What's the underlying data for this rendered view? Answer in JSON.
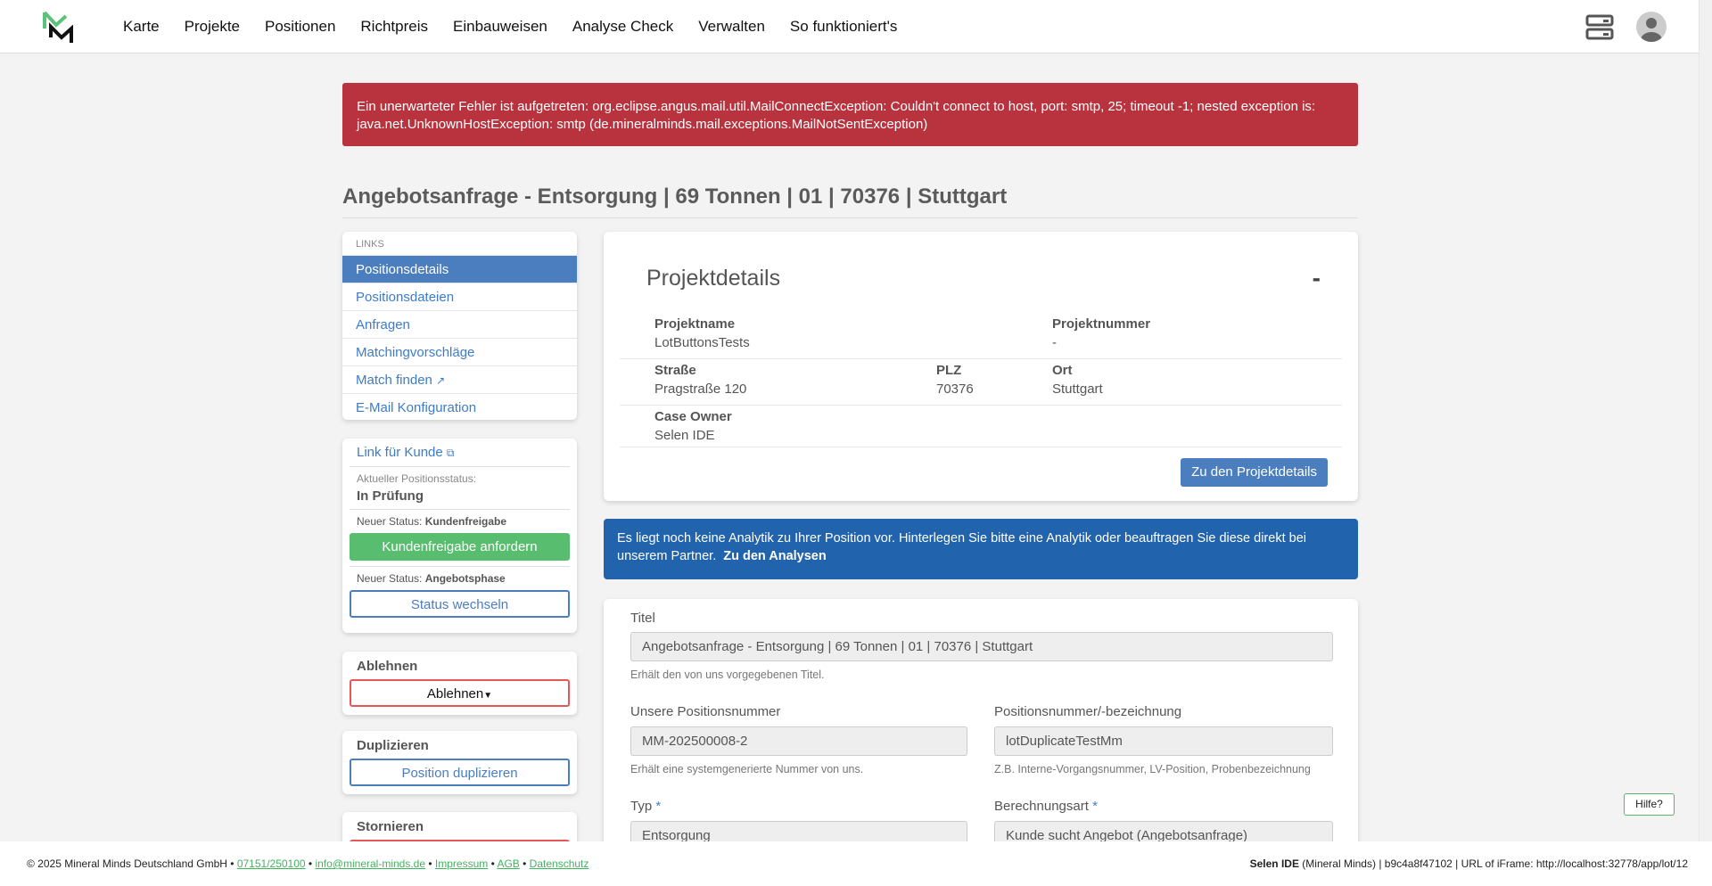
{
  "nav": {
    "items": [
      "Karte",
      "Projekte",
      "Positionen",
      "Richtpreis",
      "Einbauweisen",
      "Analyse Check",
      "Verwalten",
      "So funktioniert's"
    ]
  },
  "alert": "Ein unerwarteter Fehler ist aufgetreten: org.eclipse.angus.mail.util.MailConnectException: Couldn't connect to host, port: smtp, 25; timeout -1; nested exception is: java.net.UnknownHostException: smtp (de.mineralminds.mail.exceptions.MailNotSentException)",
  "page_title": "Angebotsanfrage - Entsorgung | 69 Tonnen | 01 | 70376 | Stuttgart",
  "sidebar": {
    "links_label": "LINKS",
    "links": [
      "Positionsdetails",
      "Positionsdateien",
      "Anfragen",
      "Matchingvorschläge",
      "Match finden",
      "E-Mail Konfiguration"
    ],
    "link_customer": "Link für Kunde",
    "status_label": "Aktueller Positionsstatus:",
    "status_value": "In Prüfung",
    "new_status_prefix": "Neuer Status:",
    "new_status_1": "Kundenfreigabe",
    "btn_release": "Kundenfreigabe anfordern",
    "new_status_2": "Angebotsphase",
    "btn_switch": "Status wechseln",
    "reject_title": "Ablehnen",
    "reject_btn": "Ablehnen",
    "dup_title": "Duplizieren",
    "dup_btn": "Position duplizieren",
    "cancel_title": "Stornieren"
  },
  "project": {
    "title": "Projektdetails",
    "collapse": "-",
    "fields": {
      "name_l": "Projektname",
      "name_v": "LotButtonsTests",
      "num_l": "Projektnummer",
      "num_v": "-",
      "street_l": "Straße",
      "street_v": "Pragstraße 120",
      "plz_l": "PLZ",
      "plz_v": "70376",
      "ort_l": "Ort",
      "ort_v": "Stuttgart",
      "owner_l": "Case Owner",
      "owner_v": "Selen IDE"
    },
    "button": "Zu den Projektdetails"
  },
  "info": {
    "text": "Es liegt noch keine Analytik zu Ihrer Position vor. Hinterlegen Sie bitte eine Analytik oder beauftragen Sie diese direkt bei unserem Partner.",
    "link": "Zu den Analysen"
  },
  "form": {
    "titel_l": "Titel",
    "titel_v": "Angebotsanfrage - Entsorgung | 69 Tonnen | 01 | 70376 | Stuttgart",
    "titel_h": "Erhält den von uns vorgegebenen Titel.",
    "posnr_l": "Unsere Positionsnummer",
    "posnr_v": "MM-202500008-2",
    "posnr_h": "Erhält eine systemgenerierte Nummer von uns.",
    "bez_l": "Positionsnummer/-bezeichnung",
    "bez_v": "lotDuplicateTestMm",
    "bez_h": "Z.B. Interne-Vorgangsnummer, LV-Position, Probenbezeichnung",
    "typ_l": "Typ",
    "typ_v": "Entsorgung",
    "ber_l": "Berechnungsart",
    "ber_v": "Kunde sucht Angebot (Angebotsanfrage)",
    "req": "*"
  },
  "footer": {
    "copy": "© 2025 Mineral Minds Deutschland GmbH",
    "phone": "07151/250100",
    "email": "info@mineral-minds.de",
    "impressum": "Impressum",
    "agb": "AGB",
    "datenschutz": "Datenschutz",
    "sep": " • ",
    "user": "Selen IDE",
    "right": "(Mineral Minds) | b9c4a8f47102 | URL of iFrame: http://localhost:32778/app/lot/12"
  },
  "help": "Hilfe?",
  "colors": {
    "error": "#b8333d",
    "primary": "#4a7ebf",
    "success": "#59bd6f",
    "info": "#2163ac",
    "danger": "#e45858"
  }
}
